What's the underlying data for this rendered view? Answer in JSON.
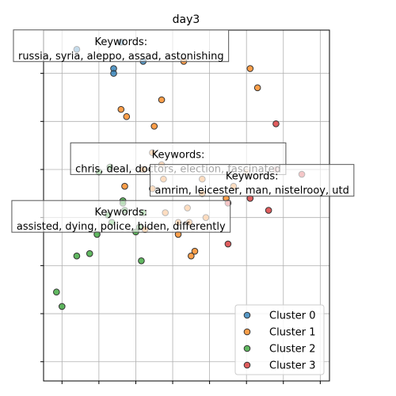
{
  "chart_data": {
    "type": "scatter",
    "title": "day3",
    "xlabel": "",
    "ylabel": "",
    "xlim": [
      -3.0,
      12.5
    ],
    "ylim": [
      -2.8,
      11.8
    ],
    "grid": true,
    "legend_placement": "bottom-right",
    "series": [
      {
        "name": "Cluster 0",
        "color": "#1f77b4",
        "points": [
          [
            -1.2,
            11.0
          ],
          [
            0.8,
            10.2
          ],
          [
            2.4,
            10.5
          ],
          [
            0.8,
            10.0
          ],
          [
            1.2,
            11.3
          ]
        ]
      },
      {
        "name": "Cluster 1",
        "color": "#ff7f0e",
        "points": [
          [
            4.6,
            10.5
          ],
          [
            8.2,
            10.2
          ],
          [
            8.6,
            9.4
          ],
          [
            3.4,
            8.9
          ],
          [
            1.2,
            8.5
          ],
          [
            1.5,
            8.2
          ],
          [
            3.0,
            7.8
          ],
          [
            2.9,
            6.7
          ],
          [
            3.4,
            6.2
          ],
          [
            2.4,
            6.0
          ],
          [
            3.5,
            5.6
          ],
          [
            5.6,
            5.6
          ],
          [
            1.4,
            5.3
          ],
          [
            2.9,
            5.2
          ],
          [
            5.6,
            5.0
          ],
          [
            7.3,
            5.3
          ],
          [
            8.0,
            5.9
          ],
          [
            6.9,
            4.8
          ],
          [
            4.8,
            4.4
          ],
          [
            3.6,
            4.2
          ],
          [
            5.8,
            4.0
          ],
          [
            4.3,
            3.8
          ],
          [
            4.9,
            3.8
          ],
          [
            4.3,
            3.3
          ],
          [
            2.5,
            3.5
          ],
          [
            5.2,
            2.6
          ],
          [
            5.0,
            2.4
          ]
        ]
      },
      {
        "name": "Cluster 2",
        "color": "#2ca02c",
        "points": [
          [
            0.0,
            5.9
          ],
          [
            0.6,
            6.1
          ],
          [
            1.3,
            4.7
          ],
          [
            2.4,
            4.2
          ],
          [
            1.4,
            4.3
          ],
          [
            0.5,
            4.1
          ],
          [
            2.2,
            3.6
          ],
          [
            2.0,
            3.4
          ],
          [
            1.3,
            4.6
          ],
          [
            0.7,
            3.8
          ],
          [
            -0.1,
            3.3
          ],
          [
            -0.5,
            2.5
          ],
          [
            -1.2,
            2.4
          ],
          [
            2.3,
            2.2
          ],
          [
            -2.3,
            0.9
          ],
          [
            -2.0,
            0.3
          ]
        ]
      },
      {
        "name": "Cluster 3",
        "color": "#d62728",
        "points": [
          [
            9.6,
            7.9
          ],
          [
            9.6,
            6.0
          ],
          [
            11.0,
            5.8
          ],
          [
            8.2,
            4.8
          ],
          [
            7.0,
            4.6
          ],
          [
            9.2,
            4.3
          ],
          [
            7.0,
            2.9
          ]
        ]
      }
    ],
    "annotations": [
      {
        "text": "Keywords:\nrussia, syria, aleppo, assad, astonishing",
        "x": 1.2,
        "y": 11.05
      },
      {
        "text": "Keywords:\nchris, deal, doctors, election, fascinated",
        "x": 4.3,
        "y": 6.35
      },
      {
        "text": "Keywords:\namrim, leicester, man, nistelrooy, utd",
        "x": 8.3,
        "y": 5.45
      },
      {
        "text": "Keywords:\nassisted, dying, police, biden, differently",
        "x": 1.2,
        "y": 3.95
      }
    ]
  }
}
